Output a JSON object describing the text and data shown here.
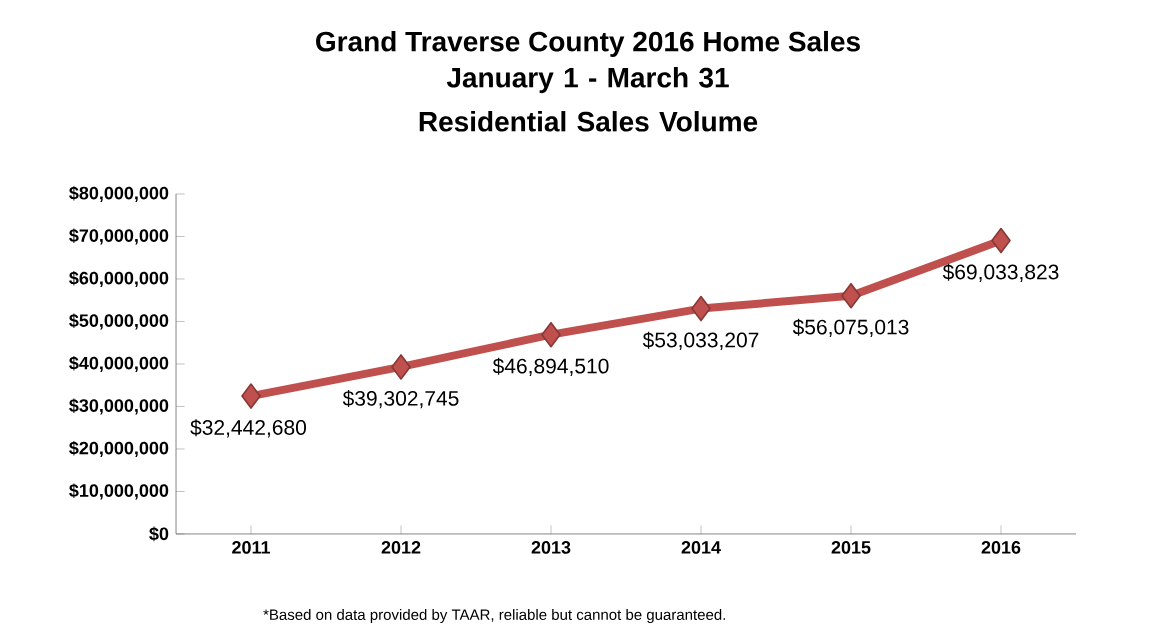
{
  "chart_data": {
    "type": "line",
    "title": "Grand Traverse County 2016 Home Sales",
    "subtitle": "January 1 - March 31 Residential Sales Volume",
    "categories": [
      "2011",
      "2012",
      "2013",
      "2014",
      "2015",
      "2016"
    ],
    "series": [
      {
        "color": "#c0504d",
        "values": [
          32442680,
          39302745,
          46894510,
          53033207,
          56075013,
          69033823
        ],
        "value_labels": [
          "$32,442,680",
          "$39,302,745",
          "$46,894,510",
          "$53,033,207",
          "$56,075,013",
          "$69,033,823"
        ]
      }
    ],
    "ylim": [
      0,
      80000000
    ],
    "yticks": [
      {
        "value": 0,
        "label": "$0"
      },
      {
        "value": 10000000,
        "label": "$10,000,000"
      },
      {
        "value": 20000000,
        "label": "$20,000,000"
      },
      {
        "value": 30000000,
        "label": "$30,000,000"
      },
      {
        "value": 40000000,
        "label": "$40,000,000"
      },
      {
        "value": 50000000,
        "label": "$50,000,000"
      },
      {
        "value": 60000000,
        "label": "$60,000,000"
      },
      {
        "value": 70000000,
        "label": "$70,000,000"
      },
      {
        "value": 80000000,
        "label": "$80,000,000"
      }
    ],
    "marker": "diamond",
    "line_style": "solid",
    "annotations": [
      "*Based on data provided by TAAR, reliable but cannot be guaranteed."
    ]
  }
}
